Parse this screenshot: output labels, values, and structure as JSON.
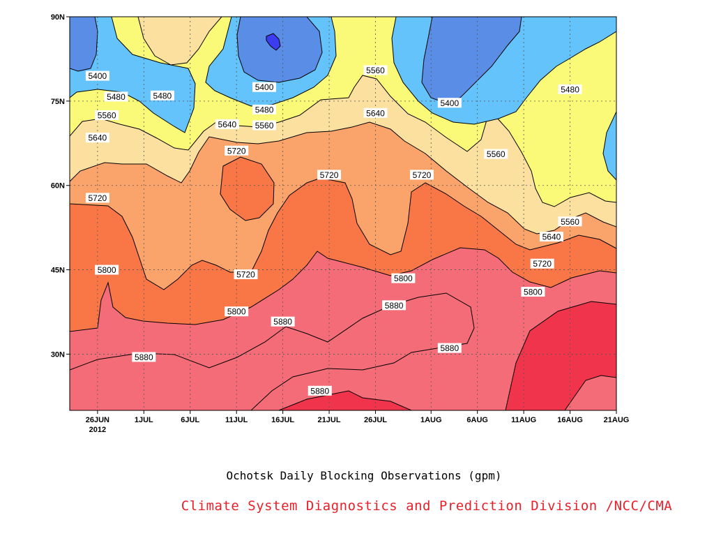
{
  "chart_data": {
    "type": "contour",
    "title": "Ochotsk Daily Blocking Observations (gpm)",
    "credit": "Climate System Diagnostics and Prediction Division /NCC/CMA",
    "x_axis": {
      "ticks": [
        "26JUN",
        "1JUL",
        "6JUL",
        "11JUL",
        "16JUL",
        "21JUL",
        "26JUL",
        "1AUG",
        "6AUG",
        "11AUG",
        "16AUG",
        "21AUG"
      ],
      "year_label": "2012",
      "day_index": [
        0,
        5,
        10,
        15,
        20,
        25,
        30,
        36,
        41,
        46,
        51,
        56
      ],
      "range_days": [
        -3,
        56
      ]
    },
    "y_axis": {
      "ticks": [
        "30N",
        "45N",
        "60N",
        "75N",
        "90N"
      ],
      "tick_values": [
        30,
        45,
        60,
        75,
        90
      ],
      "range": [
        20,
        90
      ]
    },
    "grid": true,
    "levels": [
      5400,
      5480,
      5560,
      5640,
      5720,
      5800,
      5880
    ],
    "colors": {
      "lt5400": "#5a8ee6",
      "5400": "#64c3fb",
      "5480": "#fbfa78",
      "5560": "#fbe0a0",
      "5640": "#faa36a",
      "5720": "#f97746",
      "5800": "#f46c78",
      "5880": "#f0344b",
      "lowest": "#3c3cf0"
    },
    "contour_labels": [
      {
        "text": "5400",
        "day": 0,
        "lat": 79.5
      },
      {
        "text": "5480",
        "day": 2,
        "lat": 75.8
      },
      {
        "text": "5480",
        "day": 7,
        "lat": 76
      },
      {
        "text": "5560",
        "day": 1,
        "lat": 72.5
      },
      {
        "text": "5640",
        "day": 0,
        "lat": 68.5
      },
      {
        "text": "5720",
        "day": 0,
        "lat": 57.8
      },
      {
        "text": "5800",
        "day": 1,
        "lat": 45
      },
      {
        "text": "5880",
        "day": 5,
        "lat": 29.5
      },
      {
        "text": "5400",
        "day": 18,
        "lat": 77.5
      },
      {
        "text": "5480",
        "day": 18,
        "lat": 73.5
      },
      {
        "text": "5560",
        "day": 18,
        "lat": 70.7
      },
      {
        "text": "5640",
        "day": 14,
        "lat": 70.9
      },
      {
        "text": "5720",
        "day": 15,
        "lat": 66.2
      },
      {
        "text": "5720",
        "day": 16,
        "lat": 44.2
      },
      {
        "text": "5800",
        "day": 15,
        "lat": 37.6
      },
      {
        "text": "5880",
        "day": 20,
        "lat": 35.8
      },
      {
        "text": "5880",
        "day": 24,
        "lat": 23.5
      },
      {
        "text": "5560",
        "day": 30,
        "lat": 80.5
      },
      {
        "text": "5640",
        "day": 30,
        "lat": 72.9
      },
      {
        "text": "5720",
        "day": 25,
        "lat": 61.9
      },
      {
        "text": "5720",
        "day": 35,
        "lat": 61.9
      },
      {
        "text": "5800",
        "day": 33,
        "lat": 43.5
      },
      {
        "text": "5880",
        "day": 32,
        "lat": 38.7
      },
      {
        "text": "5880",
        "day": 38,
        "lat": 31.1
      },
      {
        "text": "5400",
        "day": 38,
        "lat": 74.7
      },
      {
        "text": "5560",
        "day": 43,
        "lat": 65.6
      },
      {
        "text": "5480",
        "day": 51,
        "lat": 77.1
      },
      {
        "text": "5560",
        "day": 51,
        "lat": 53.6
      },
      {
        "text": "5640",
        "day": 49,
        "lat": 50.9
      },
      {
        "text": "5720",
        "day": 48,
        "lat": 46.1
      },
      {
        "text": "5800",
        "day": 47,
        "lat": 41.1
      }
    ]
  }
}
